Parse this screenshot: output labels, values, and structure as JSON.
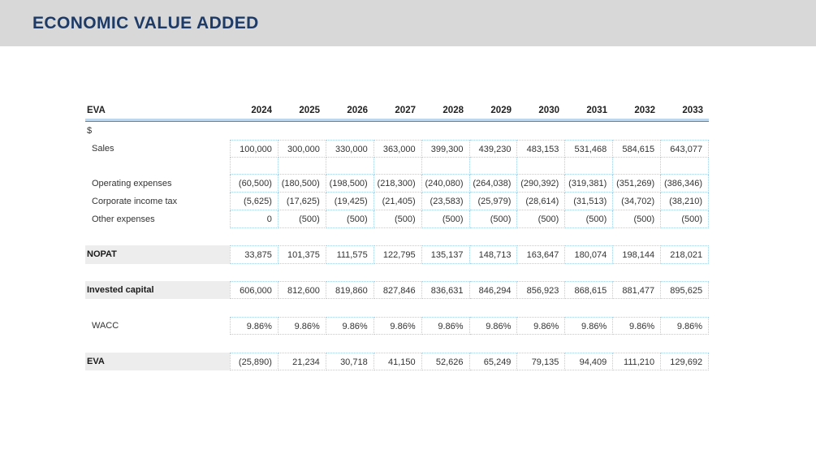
{
  "page_title": "ECONOMIC VALUE ADDED",
  "colors": {
    "titlebar_bg": "#d8d8d8",
    "title_text": "#1e3a66",
    "header_rule_light": "#bdd8ee",
    "header_rule_dark": "#2f96d4",
    "grid_dotted_border": "#a9d2ea",
    "summary_label_fill": "#ededed"
  },
  "table": {
    "corner_label": "EVA",
    "unit_label": "$",
    "years": [
      "2024",
      "2025",
      "2026",
      "2027",
      "2028",
      "2029",
      "2030",
      "2031",
      "2032",
      "2033"
    ],
    "rows": [
      {
        "label": "Sales",
        "values": [
          "100,000",
          "300,000",
          "330,000",
          "363,000",
          "399,300",
          "439,230",
          "483,153",
          "531,468",
          "584,615",
          "643,077"
        ]
      },
      {
        "label": "Operating expenses",
        "values": [
          "(60,500)",
          "(180,500)",
          "(198,500)",
          "(218,300)",
          "(240,080)",
          "(264,038)",
          "(290,392)",
          "(319,381)",
          "(351,269)",
          "(386,346)"
        ]
      },
      {
        "label": "Corporate income tax",
        "values": [
          "(5,625)",
          "(17,625)",
          "(19,425)",
          "(21,405)",
          "(23,583)",
          "(25,979)",
          "(28,614)",
          "(31,513)",
          "(34,702)",
          "(38,210)"
        ]
      },
      {
        "label": "Other expenses",
        "values": [
          "0",
          "(500)",
          "(500)",
          "(500)",
          "(500)",
          "(500)",
          "(500)",
          "(500)",
          "(500)",
          "(500)"
        ]
      },
      {
        "label": "NOPAT",
        "values": [
          "33,875",
          "101,375",
          "111,575",
          "122,795",
          "135,137",
          "148,713",
          "163,647",
          "180,074",
          "198,144",
          "218,021"
        ]
      },
      {
        "label": "Invested capital",
        "values": [
          "606,000",
          "812,600",
          "819,860",
          "827,846",
          "836,631",
          "846,294",
          "856,923",
          "868,615",
          "881,477",
          "895,625"
        ]
      },
      {
        "label": "WACC",
        "values": [
          "9.86%",
          "9.86%",
          "9.86%",
          "9.86%",
          "9.86%",
          "9.86%",
          "9.86%",
          "9.86%",
          "9.86%",
          "9.86%"
        ]
      },
      {
        "label": "EVA",
        "values": [
          "(25,890)",
          "21,234",
          "30,718",
          "41,150",
          "52,626",
          "65,249",
          "79,135",
          "94,409",
          "111,210",
          "129,692"
        ]
      }
    ]
  }
}
